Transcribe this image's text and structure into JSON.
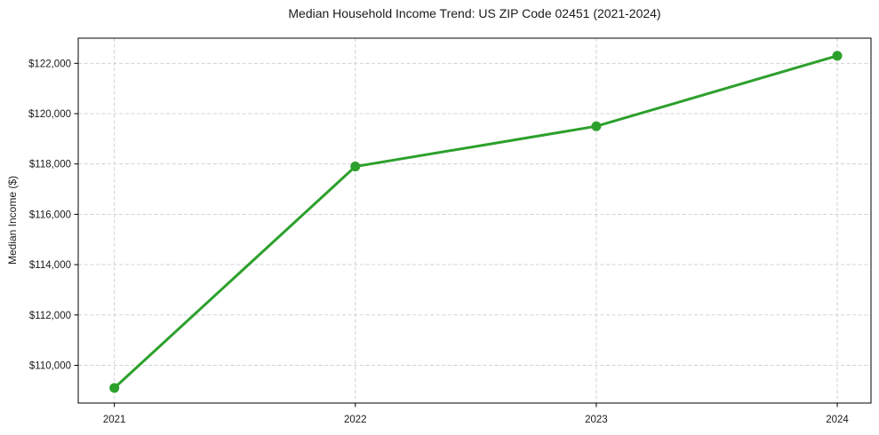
{
  "figure": {
    "background": "#ffffff"
  },
  "chart_data": {
    "type": "line",
    "title": "Median Household Income Trend: US ZIP Code 02451 (2021-2024)",
    "xlabel": "",
    "ylabel": "Median Income ($)",
    "categories": [
      2021,
      2022,
      2023,
      2024
    ],
    "x_tick_labels": [
      "2021",
      "2022",
      "2023",
      "2024"
    ],
    "series": [
      {
        "name": "median-household-income",
        "values": [
          109100,
          117900,
          119500,
          122300
        ],
        "color": "#2ca02c",
        "marker": "circle",
        "marker_size": 11,
        "line_width": 3
      }
    ],
    "y_ticks": [
      {
        "value": 110000,
        "label": "$110,000"
      },
      {
        "value": 112000,
        "label": "$112,000"
      },
      {
        "value": 114000,
        "label": "$114,000"
      },
      {
        "value": 116000,
        "label": "$116,000"
      },
      {
        "value": 118000,
        "label": "$118,000"
      },
      {
        "value": 120000,
        "label": "$120,000"
      },
      {
        "value": 122000,
        "label": "$122,000"
      }
    ],
    "xlim": [
      2020.85,
      2024.14
    ],
    "ylim": [
      108500,
      123000
    ],
    "grid": {
      "show": true,
      "style": "dashed",
      "color": "#cccccc",
      "dash": "4 2.6"
    },
    "axes": {
      "spine_color": "#000000",
      "tick_color": "#000000",
      "text_color": "#1a1a1a"
    },
    "legend": {
      "show": false
    }
  }
}
